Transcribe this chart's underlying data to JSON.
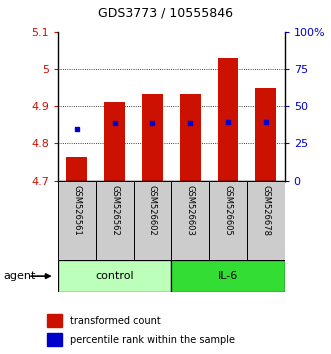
{
  "title": "GDS3773 / 10555846",
  "samples": [
    "GSM526561",
    "GSM526562",
    "GSM526602",
    "GSM526603",
    "GSM526605",
    "GSM526678"
  ],
  "transformed_counts": [
    4.762,
    4.91,
    4.932,
    4.932,
    5.03,
    4.95
  ],
  "percentile_values": [
    4.84,
    4.855,
    4.855,
    4.855,
    4.858,
    4.857
  ],
  "y_min": 4.7,
  "y_max": 5.1,
  "y_ticks": [
    4.7,
    4.8,
    4.9,
    5.0,
    5.1
  ],
  "y_tick_labels": [
    "4.7",
    "4.8",
    "4.9",
    "5",
    "5.1"
  ],
  "right_y_ticks_pct": [
    0,
    25,
    50,
    75,
    100
  ],
  "right_y_tick_labels": [
    "0",
    "25",
    "50",
    "75",
    "100%"
  ],
  "bar_color": "#cc1100",
  "percentile_color": "#0000cc",
  "control_color": "#bbffbb",
  "il6_color": "#33dd33",
  "sample_box_color": "#cccccc",
  "bar_width": 0.55,
  "axis_color_left": "#cc1100",
  "axis_color_right": "#0000cc",
  "legend_items": [
    "transformed count",
    "percentile rank within the sample"
  ],
  "legend_colors": [
    "#cc1100",
    "#0000cc"
  ]
}
